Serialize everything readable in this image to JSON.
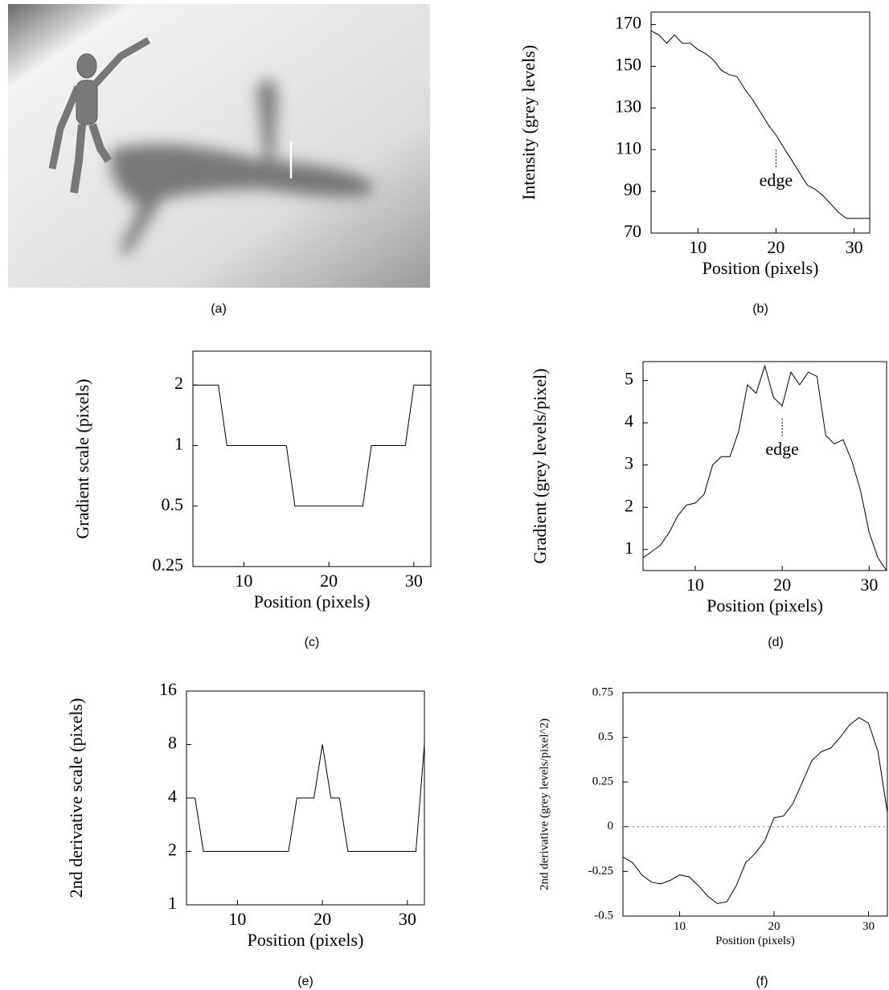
{
  "photo": {
    "caption": "(a)"
  },
  "chart_data": [
    {
      "type": "line",
      "caption": "(b)",
      "xlabel": "Position (pixels)",
      "ylabel": "Intensity (grey levels)",
      "x": [
        4,
        5,
        6,
        7,
        8,
        9,
        10,
        11,
        12,
        13,
        14,
        15,
        16,
        17,
        18,
        19,
        20,
        21,
        22,
        23,
        24,
        25,
        26,
        27,
        28,
        29,
        30,
        31,
        32
      ],
      "values": [
        167,
        165,
        161,
        165,
        161,
        161,
        158,
        156,
        153,
        148,
        146,
        145,
        139,
        134,
        128,
        122,
        117,
        111,
        105,
        99,
        93,
        91,
        88,
        84,
        80,
        77,
        77,
        77,
        77
      ],
      "xlim": [
        4,
        32
      ],
      "ylim": [
        70,
        176
      ],
      "xticks": [
        10,
        20,
        30
      ],
      "yticks": [
        70,
        90,
        110,
        130,
        150,
        170
      ],
      "annotations": [
        {
          "text": "edge",
          "x": 20,
          "y": 110
        }
      ]
    },
    {
      "type": "line",
      "caption": "(c)",
      "xlabel": "Position (pixels)",
      "ylabel": "Gradient scale (pixels)",
      "log_y": true,
      "x": [
        4,
        5,
        6,
        7,
        8,
        9,
        10,
        11,
        12,
        13,
        14,
        15,
        16,
        17,
        18,
        19,
        20,
        21,
        22,
        23,
        24,
        25,
        26,
        27,
        28,
        29,
        30,
        31,
        32
      ],
      "values": [
        2,
        2,
        2,
        2,
        1,
        1,
        1,
        1,
        1,
        1,
        1,
        1,
        0.5,
        0.5,
        0.5,
        0.5,
        0.5,
        0.5,
        0.5,
        0.5,
        0.5,
        1,
        1,
        1,
        1,
        1,
        2,
        2,
        2
      ],
      "xlim": [
        4,
        32
      ],
      "ylim": [
        0.25,
        2.95
      ],
      "xticks": [
        10,
        20,
        30
      ],
      "yticks": [
        0.25,
        0.5,
        1,
        2
      ]
    },
    {
      "type": "line",
      "caption": "(d)",
      "xlabel": "Position (pixels)",
      "ylabel": "Gradient (grey levels/pixel)",
      "x": [
        4,
        5,
        6,
        7,
        8,
        9,
        10,
        11,
        12,
        13,
        14,
        15,
        16,
        17,
        18,
        19,
        20,
        21,
        22,
        23,
        24,
        25,
        26,
        27,
        28,
        29,
        30,
        31,
        32
      ],
      "values": [
        0.8,
        0.95,
        1.1,
        1.4,
        1.8,
        2.05,
        2.1,
        2.3,
        3.0,
        3.2,
        3.2,
        3.8,
        4.9,
        4.7,
        5.35,
        4.6,
        4.4,
        5.2,
        4.9,
        5.2,
        5.1,
        3.7,
        3.5,
        3.6,
        3.1,
        2.4,
        1.4,
        0.8,
        0.5
      ],
      "xlim": [
        4,
        32
      ],
      "ylim": [
        0.5,
        5.45
      ],
      "xticks": [
        10,
        20,
        30
      ],
      "yticks": [
        1,
        2,
        3,
        4,
        5
      ],
      "annotations": [
        {
          "text": "edge",
          "x": 20,
          "y": 4.1
        }
      ]
    },
    {
      "type": "line",
      "caption": "(e)",
      "xlabel": "Position (pixels)",
      "ylabel": "2nd derivative scale (pixels)",
      "log_y": true,
      "x": [
        4,
        5,
        6,
        7,
        8,
        9,
        10,
        11,
        12,
        13,
        14,
        15,
        16,
        17,
        18,
        19,
        20,
        21,
        22,
        23,
        24,
        25,
        26,
        27,
        28,
        29,
        30,
        31,
        32
      ],
      "values": [
        4,
        4,
        2,
        2,
        2,
        2,
        2,
        2,
        2,
        2,
        2,
        2,
        2,
        4,
        4,
        4,
        8,
        4,
        4,
        2,
        2,
        2,
        2,
        2,
        2,
        2,
        2,
        2,
        8
      ],
      "xlim": [
        4,
        32
      ],
      "ylim": [
        1,
        16
      ],
      "xticks": [
        10,
        20,
        30
      ],
      "yticks": [
        1,
        2,
        4,
        8,
        16
      ]
    },
    {
      "type": "line",
      "caption": "(f)",
      "xlabel": "Position (pixels)",
      "ylabel": "2nd derivative (grey levels/pixel^2)",
      "zero_line": true,
      "x": [
        4,
        5,
        6,
        7,
        8,
        9,
        10,
        11,
        12,
        13,
        14,
        15,
        16,
        17,
        18,
        19,
        20,
        21,
        22,
        23,
        24,
        25,
        26,
        27,
        28,
        29,
        30,
        31,
        32
      ],
      "values": [
        -0.17,
        -0.2,
        -0.27,
        -0.31,
        -0.32,
        -0.3,
        -0.27,
        -0.28,
        -0.33,
        -0.39,
        -0.43,
        -0.42,
        -0.33,
        -0.2,
        -0.15,
        -0.08,
        0.05,
        0.06,
        0.13,
        0.25,
        0.37,
        0.42,
        0.44,
        0.5,
        0.57,
        0.61,
        0.58,
        0.42,
        0.08
      ],
      "xlim": [
        4,
        32
      ],
      "ylim": [
        -0.5,
        0.75
      ],
      "xticks": [
        10,
        20,
        30
      ],
      "yticks": [
        -0.5,
        -0.25,
        0,
        0.25,
        0.5,
        0.75
      ]
    }
  ]
}
